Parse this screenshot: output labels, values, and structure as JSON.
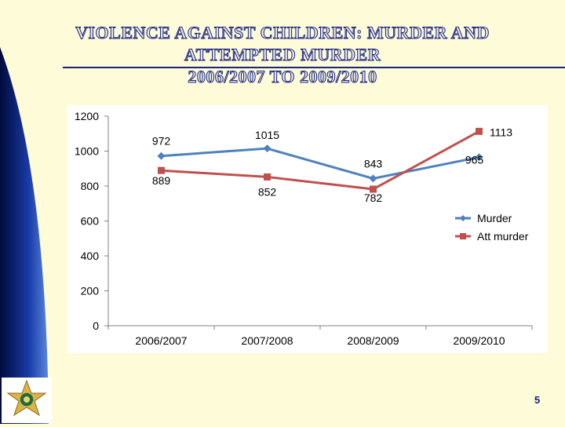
{
  "title": {
    "line1": "VIOLENCE AGAINST CHILDREN:  MURDER AND",
    "line2": "ATTEMPTED MURDER",
    "line3": "2006/2007 TO 2009/2010"
  },
  "page_number": "5",
  "logo": {
    "icon": "police-star-badge-icon"
  },
  "chart_data": {
    "type": "line",
    "categories": [
      "2006/2007",
      "2007/2008",
      "2008/2009",
      "2009/2010"
    ],
    "series": [
      {
        "name": "Murder",
        "values": [
          972,
          1015,
          843,
          965
        ],
        "color": "#4f81bd",
        "marker": "diamond"
      },
      {
        "name": "Att murder",
        "values": [
          889,
          852,
          782,
          1113
        ],
        "color": "#c0504d",
        "marker": "square"
      }
    ],
    "ylim": [
      0,
      1200
    ],
    "yticks": [
      0,
      200,
      400,
      600,
      800,
      1000,
      1200
    ],
    "grid": false,
    "legend": "right"
  }
}
